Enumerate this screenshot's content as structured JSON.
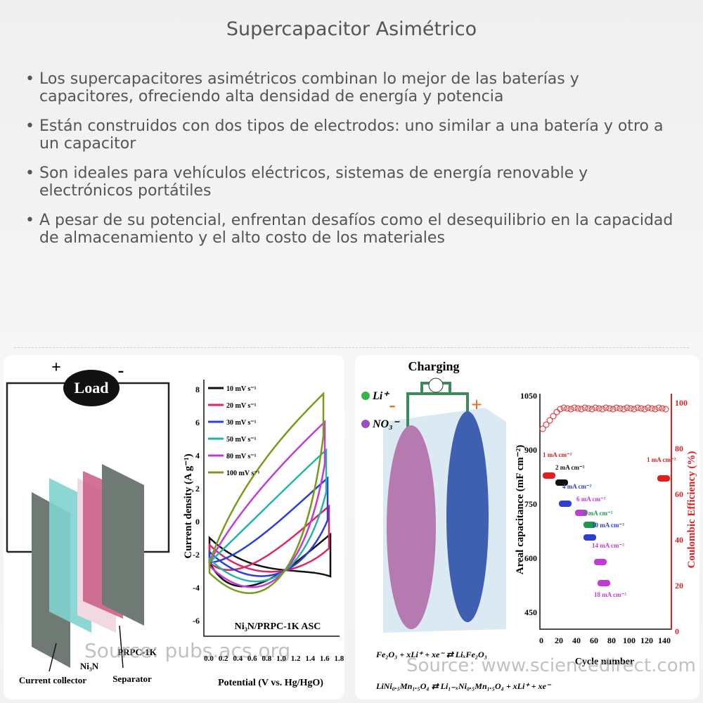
{
  "header": {
    "title": "Supercapacitor Asimétrico"
  },
  "bullets": [
    "Los supercapacitores asimétricos combinan lo mejor de las baterías y capacitores, ofreciendo alta densidad de energía y potencia",
    "Están construidos con dos tipos de electrodos: uno similar a una batería y otro a un capacitor",
    "Son ideales para vehículos eléctricos, sistemas de energía renovable y electrónicos portátiles",
    "A pesar de su potencial, enfrentan desafíos como el desequilibrio en la capacidad de almacenamiento y el alto costo de los materiales"
  ],
  "figures": [
    {
      "schematic": {
        "load": "Load",
        "plus": "+",
        "minus": "-",
        "current_collector": "Current collector",
        "electrode": "Ni₃N",
        "counter_electrode": "PRPC-1K",
        "separator": "Separator"
      },
      "plot": {
        "y_label": "Current density (A g⁻¹)",
        "x_label": "Potential (V vs. Hg/HgO)",
        "annotation": "Ni₃N/PRPC-1K ASC",
        "yticks": [
          "8",
          "6",
          "4",
          "2",
          "0",
          "-2",
          "-4",
          "-6"
        ],
        "xticks": [
          "0.0",
          "0.2",
          "0.4",
          "0.6",
          "0.8",
          "1.0",
          "1.2",
          "1.4",
          "1.6",
          "1.8"
        ],
        "legend": [
          {
            "name": "10 mV s⁻¹",
            "color": "#111111"
          },
          {
            "name": "20 mV s⁻¹",
            "color": "#e0245e"
          },
          {
            "name": "30 mV s⁻¹",
            "color": "#2b3fd6"
          },
          {
            "name": "50 mV s⁻¹",
            "color": "#1fb5a8"
          },
          {
            "name": "80 mV s⁻¹",
            "color": "#c23bd6"
          },
          {
            "name": "100 mV s⁻¹",
            "color": "#7a9a1e"
          }
        ]
      },
      "source": "Source: pubs.acs.org"
    },
    {
      "schematic": {
        "title": "Charging",
        "ion1": "Li⁺",
        "ion2": "NO₃⁻",
        "minus": "-",
        "plus": "+",
        "equation1": "Fe₂O₃ + xLi⁺ + xe⁻ ⇄ LiₓFe₂O₃",
        "equation2": "LiNi₀.₅Mn₁.₅O₄ ⇄ Li₁₋ₓNi₀.₅Mn₁.₅O₄ + xLi⁺ + xe⁻"
      },
      "plot": {
        "y_label": "Areal capacitance (mF cm⁻²)",
        "y2_label": "Coulombic Efficiency (%)",
        "x_label": "Cycle number",
        "yticks": [
          "1050",
          "900",
          "750",
          "600",
          "450"
        ],
        "y2ticks": [
          "100",
          "80",
          "60",
          "40",
          "20",
          "0"
        ],
        "xticks": [
          "0",
          "20",
          "40",
          "60",
          "80",
          "100",
          "120",
          "140"
        ],
        "annotations": [
          "1 mA cm⁻²",
          "2 mA cm⁻²",
          "4 mA cm⁻²",
          "6 mA cm⁻²",
          "8 mA cm⁻²",
          "10 mA cm⁻²",
          "14 mA cm⁻²",
          "18 mA cm⁻²",
          "1 mA cm⁻²"
        ]
      },
      "source": "Source: www.sciencedirect.com"
    }
  ]
}
